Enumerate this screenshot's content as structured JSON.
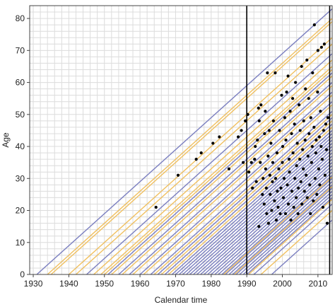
{
  "chart_data": {
    "type": "line",
    "title": "",
    "xlabel": "Calendar time",
    "ylabel": "Age",
    "xlim": [
      1929,
      2014
    ],
    "ylim": [
      0,
      84
    ],
    "grid": true,
    "xticks": [
      "1930",
      "1940",
      "1950",
      "1960",
      "1970",
      "1980",
      "1990",
      "2000",
      "2010"
    ],
    "yticks": [
      "0",
      "10",
      "20",
      "30",
      "40",
      "50",
      "60",
      "70",
      "80"
    ],
    "vertical_lines": [
      1990,
      2013.3
    ],
    "line_colors": {
      "purple": "#7b7fc0",
      "orange": "#f0c060"
    },
    "lifelines_birth_years": {
      "purple": [
        1931,
        1945,
        1951,
        1954,
        1957,
        1960,
        1963,
        1965,
        1967,
        1969,
        1970,
        1971,
        1972,
        1973,
        1974,
        1975,
        1976,
        1977,
        1978,
        1979,
        1980,
        1981,
        1982,
        1983,
        1984,
        1985,
        1986,
        1987,
        1988,
        1989,
        1990,
        1992,
        1997
      ],
      "orange": [
        1934,
        1935,
        1940,
        1942,
        1947,
        1949,
        1950,
        1952,
        1955,
        1958,
        1961,
        1964,
        1966,
        1968,
        1983.5,
        1986.5,
        1990.5,
        1994
      ]
    },
    "events": [
      [
        1964.5,
        21
      ],
      [
        1970.7,
        31
      ],
      [
        1975.8,
        36
      ],
      [
        1977.2,
        38
      ],
      [
        1980.5,
        41
      ],
      [
        1982.3,
        43
      ],
      [
        1985,
        33
      ],
      [
        1987.6,
        43
      ],
      [
        1988.5,
        45
      ],
      [
        1989,
        35
      ],
      [
        1989.6,
        48
      ],
      [
        1990.3,
        50
      ],
      [
        1990.6,
        32
      ],
      [
        1991.3,
        35
      ],
      [
        1991.6,
        27
      ],
      [
        1992.2,
        36
      ],
      [
        1992.4,
        40
      ],
      [
        1992.7,
        29
      ],
      [
        1993,
        42
      ],
      [
        1993.3,
        52
      ],
      [
        1993.4,
        15
      ],
      [
        1993.5,
        48
      ],
      [
        1993.8,
        35
      ],
      [
        1994,
        53
      ],
      [
        1994.4,
        25
      ],
      [
        1994.6,
        30
      ],
      [
        1994.9,
        22
      ],
      [
        1995,
        44
      ],
      [
        1995.2,
        51
      ],
      [
        1995.3,
        33
      ],
      [
        1995.5,
        27
      ],
      [
        1995.6,
        19
      ],
      [
        1995.8,
        63
      ],
      [
        1996,
        37
      ],
      [
        1996.1,
        16
      ],
      [
        1996.3,
        45
      ],
      [
        1996.5,
        31
      ],
      [
        1996.6,
        25
      ],
      [
        1996.8,
        41
      ],
      [
        1997,
        20
      ],
      [
        1997.2,
        29
      ],
      [
        1997.3,
        35
      ],
      [
        1997.5,
        48
      ],
      [
        1997.8,
        23
      ],
      [
        1998,
        63
      ],
      [
        1998.1,
        30
      ],
      [
        1998.3,
        17
      ],
      [
        1998.5,
        38
      ],
      [
        1998.6,
        26
      ],
      [
        1998.8,
        21
      ],
      [
        1999,
        33
      ],
      [
        1999.2,
        45
      ],
      [
        1999.4,
        19
      ],
      [
        1999.6,
        27
      ],
      [
        1999.8,
        56
      ],
      [
        2000,
        35
      ],
      [
        2000.1,
        40
      ],
      [
        2000.3,
        24
      ],
      [
        2000.5,
        30
      ],
      [
        2000.7,
        49
      ],
      [
        2000.9,
        19
      ],
      [
        2001,
        42
      ],
      [
        2001.2,
        57
      ],
      [
        2001.4,
        28
      ],
      [
        2001.6,
        62
      ],
      [
        2001.7,
        22
      ],
      [
        2001.9,
        36
      ],
      [
        2002,
        32
      ],
      [
        2002.2,
        51
      ],
      [
        2002.4,
        17
      ],
      [
        2002.6,
        44
      ],
      [
        2002.7,
        26
      ],
      [
        2002.9,
        55
      ],
      [
        2003,
        38
      ],
      [
        2003.2,
        21
      ],
      [
        2003.4,
        47
      ],
      [
        2003.5,
        30
      ],
      [
        2003.7,
        60
      ],
      [
        2003.9,
        24
      ],
      [
        2004,
        34
      ],
      [
        2004.2,
        41
      ],
      [
        2004.4,
        19
      ],
      [
        2004.5,
        27
      ],
      [
        2004.7,
        53
      ],
      [
        2004.9,
        36
      ],
      [
        2005,
        45
      ],
      [
        2005.2,
        29
      ],
      [
        2005.4,
        65
      ],
      [
        2005.5,
        22
      ],
      [
        2005.7,
        39
      ],
      [
        2005.9,
        33
      ],
      [
        2006,
        48
      ],
      [
        2006.2,
        26
      ],
      [
        2006.4,
        42
      ],
      [
        2006.5,
        58
      ],
      [
        2006.7,
        31
      ],
      [
        2006.9,
        67
      ],
      [
        2007,
        24
      ],
      [
        2007.2,
        37
      ],
      [
        2007.4,
        55
      ],
      [
        2007.5,
        44
      ],
      [
        2007.7,
        28
      ],
      [
        2007.9,
        19
      ],
      [
        2008,
        49
      ],
      [
        2008.2,
        35
      ],
      [
        2008.4,
        40
      ],
      [
        2008.5,
        63
      ],
      [
        2008.7,
        23
      ],
      [
        2008.9,
        46
      ],
      [
        2009,
        78
      ],
      [
        2009.2,
        30
      ],
      [
        2009.4,
        38
      ],
      [
        2009.5,
        42
      ],
      [
        2009.7,
        25
      ],
      [
        2009.9,
        57
      ],
      [
        2010,
        70
      ],
      [
        2010.2,
        33
      ],
      [
        2010.4,
        43
      ],
      [
        2010.5,
        28
      ],
      [
        2010.7,
        51
      ],
      [
        2010.9,
        40
      ],
      [
        2011,
        71
      ],
      [
        2011.2,
        36
      ],
      [
        2011.4,
        21
      ],
      [
        2011.6,
        45
      ],
      [
        2011.8,
        72
      ],
      [
        2012,
        31
      ],
      [
        2012.2,
        47
      ],
      [
        2012.4,
        39
      ],
      [
        2012.6,
        16
      ],
      [
        2012.8,
        49
      ]
    ]
  }
}
